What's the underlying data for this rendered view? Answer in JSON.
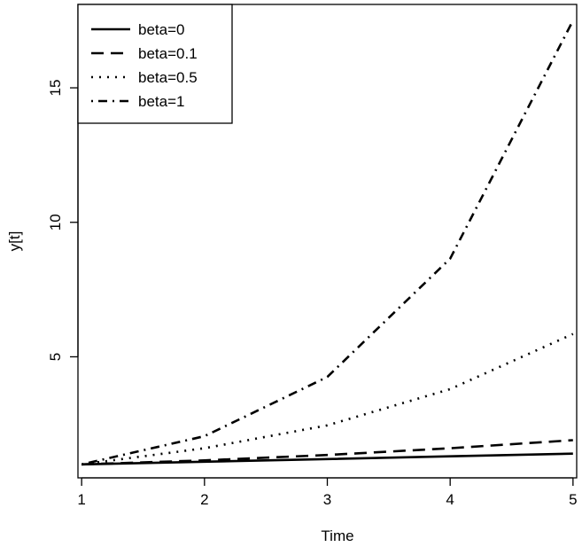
{
  "chart_data": {
    "type": "line",
    "title": "",
    "xlabel": "Time",
    "ylabel": "y[t]",
    "x": [
      1,
      2,
      3,
      4,
      5
    ],
    "xlim": [
      0.97,
      5.03
    ],
    "ylim": [
      0.5,
      18.1
    ],
    "xticks": [
      1,
      2,
      3,
      4,
      5
    ],
    "yticks": [
      5,
      10,
      15
    ],
    "grid": false,
    "legend_position": "top-left",
    "series": [
      {
        "name": "beta=0",
        "dash": "solid",
        "values": [
          1.0,
          1.1,
          1.2,
          1.3,
          1.4
        ]
      },
      {
        "name": "beta=0.1",
        "dash": "dashed",
        "values": [
          1.0,
          1.15,
          1.35,
          1.6,
          1.9
        ]
      },
      {
        "name": "beta=0.5",
        "dash": "dotted",
        "values": [
          1.0,
          1.6,
          2.45,
          3.8,
          5.85
        ]
      },
      {
        "name": "beta=1",
        "dash": "dotdash",
        "values": [
          1.0,
          2.05,
          4.25,
          8.65,
          17.5
        ]
      }
    ],
    "line_color": "#000000"
  }
}
